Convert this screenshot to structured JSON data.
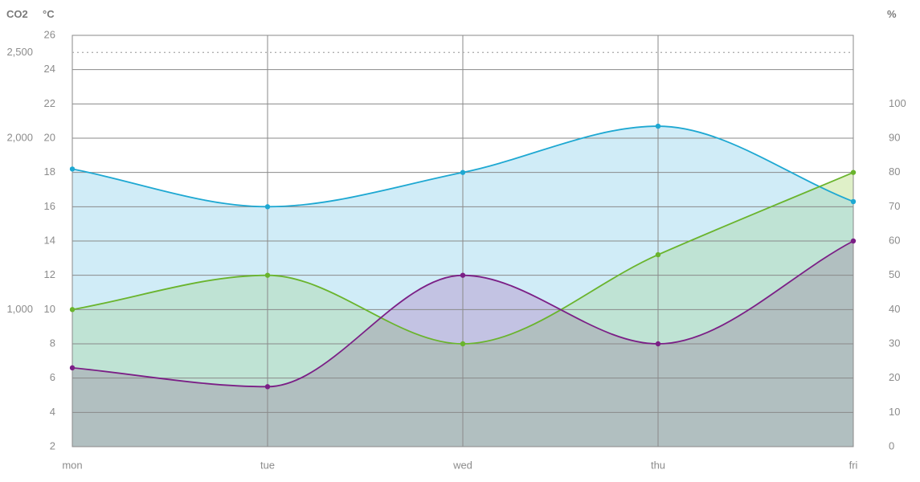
{
  "chart_data": {
    "type": "area",
    "categories": [
      "mon",
      "tue",
      "wed",
      "thu",
      "fri"
    ],
    "axes": {
      "co2": {
        "unit_label": "CO2",
        "side": "left",
        "ticks": [
          {
            "value": 1000,
            "label": "1,000"
          },
          {
            "value": 2000,
            "label": "2,000"
          },
          {
            "value": 2500,
            "label": "2,500"
          }
        ],
        "reference_line": 2500
      },
      "temperature": {
        "unit_label": "°C",
        "side": "left",
        "range": [
          2,
          26
        ],
        "ticks": [
          2,
          4,
          6,
          8,
          10,
          12,
          14,
          16,
          18,
          20,
          22,
          24,
          26
        ]
      },
      "humidity": {
        "unit_label": "%",
        "side": "right",
        "range": [
          0,
          120
        ],
        "ticks": [
          0,
          10,
          20,
          30,
          40,
          50,
          60,
          70,
          80,
          90,
          100
        ]
      }
    },
    "grid": true,
    "series": [
      {
        "key": "blue",
        "axis": "temperature",
        "values": [
          18.2,
          16.0,
          18.0,
          20.7,
          16.3
        ],
        "color": "#1ea8d2",
        "fill": "#d0ecf7"
      },
      {
        "key": "green",
        "axis": "humidity",
        "values": [
          40,
          50,
          30,
          56,
          80
        ],
        "color": "#6ab42d",
        "fill": "#dff0c8"
      },
      {
        "key": "purple",
        "axis": "temperature",
        "values": [
          6.6,
          5.5,
          12.0,
          8.0,
          14.0
        ],
        "color": "#7b1f86",
        "fill": "#c3c3e3"
      }
    ],
    "overlap_colors": {
      "blue_green": "#bfe3d4",
      "green_purple": "#b1bfc0",
      "all": "#b1bfc0"
    }
  }
}
